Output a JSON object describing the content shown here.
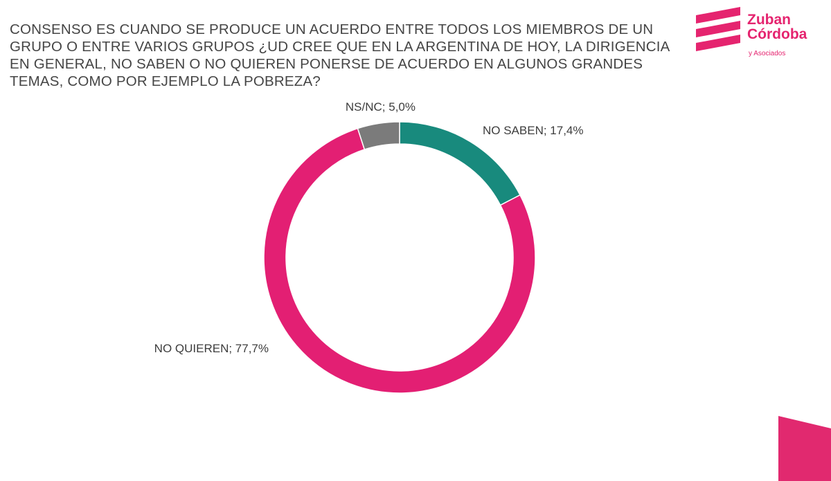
{
  "question": "CONSENSO ES CUANDO SE PRODUCE UN ACUERDO ENTRE TODOS LOS MIEMBROS DE UN GRUPO O ENTRE VARIOS GRUPOS ¿UD CREE QUE EN LA ARGENTINA DE HOY, LA DIRIGENCIA EN GENERAL, NO SABEN O NO QUIEREN PONERSE DE ACUERDO EN ALGUNOS GRANDES TEMAS, COMO POR EJEMPLO LA POBREZA?",
  "logo": {
    "line1": "Zuban",
    "line2": "Córdoba",
    "sub": "y Asociados",
    "color": "#e5246f"
  },
  "chart_data": {
    "type": "pie",
    "donut": true,
    "slices": [
      {
        "label": "NO SABEN",
        "value": 17.4,
        "display": "NO SABEN; 17,4%",
        "color": "#188a7d"
      },
      {
        "label": "NO QUIEREN",
        "value": 77.7,
        "display": "NO QUIEREN; 77,7%",
        "color": "#e31f73"
      },
      {
        "label": "NS/NC",
        "value": 5.0,
        "display": "NS/NC; 5,0%",
        "color": "#7b7b7b"
      }
    ]
  },
  "colors": {
    "accent": "#e31f73",
    "corner": "#e1296f"
  }
}
